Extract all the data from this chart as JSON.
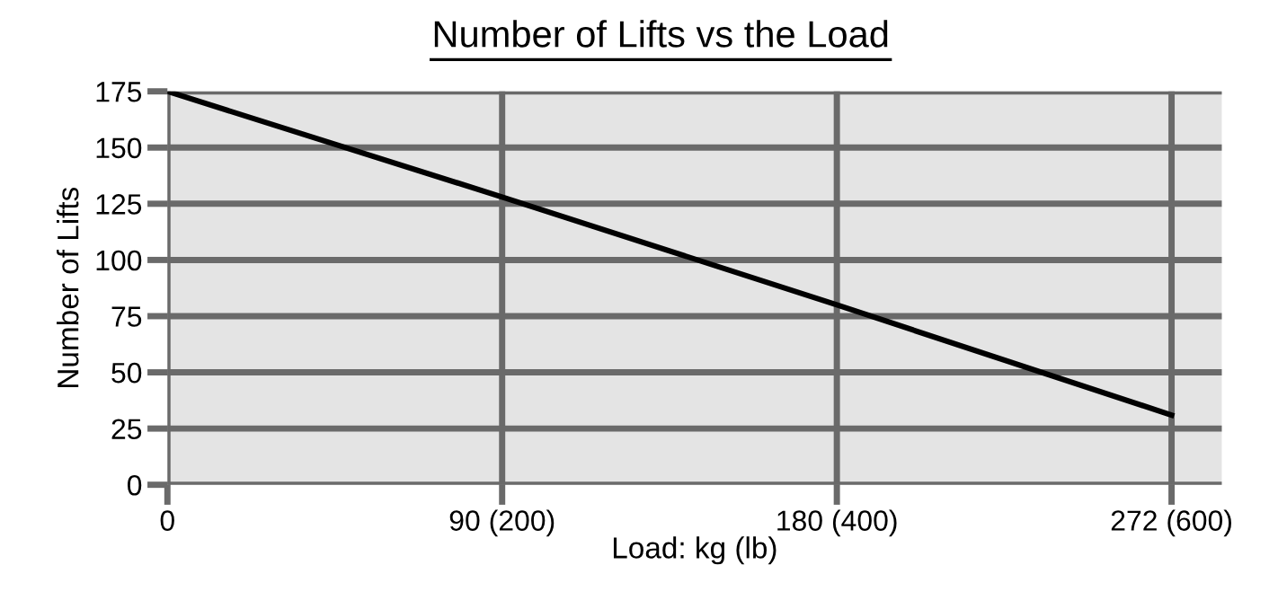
{
  "chart_data": {
    "type": "line",
    "title": "Number of Lifts vs the Load",
    "xlabel": "Load: kg (lb)",
    "ylabel": "Number of Lifts",
    "categories": [
      "0",
      "90 (200)",
      "180 (400)",
      "272 (600)"
    ],
    "series": [
      {
        "color": "#000000",
        "values": [
          175,
          128,
          80,
          31
        ]
      }
    ],
    "ylim": [
      0,
      175
    ],
    "yticks": [
      0,
      25,
      50,
      75,
      100,
      125,
      150,
      175
    ],
    "grid": true,
    "marker": "none",
    "line_style": "solid"
  }
}
